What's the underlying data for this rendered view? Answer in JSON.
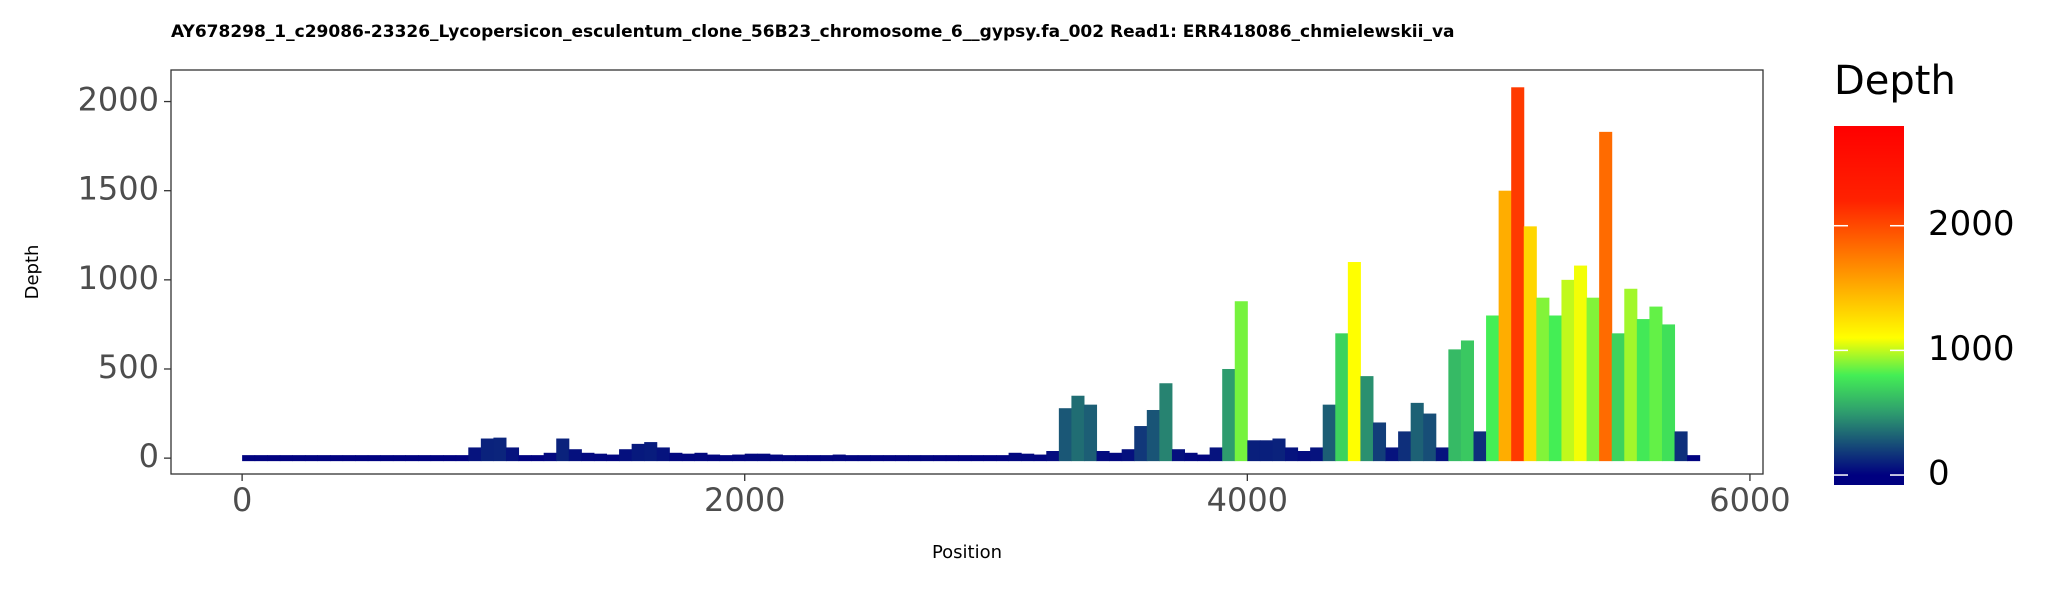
{
  "chart_data": {
    "type": "coverage",
    "title": "AY678298_1_c29086-23326_Lycopersicon_esculentum_clone_56B23_chromosome_6__gypsy.fa_002    Read1: ERR418086_chmielewskii_va",
    "x_label": "Position",
    "y_label": "Depth",
    "x": [
      0,
      50,
      100,
      150,
      200,
      250,
      300,
      350,
      400,
      450,
      500,
      550,
      600,
      650,
      700,
      750,
      800,
      850,
      900,
      950,
      1000,
      1050,
      1100,
      1150,
      1200,
      1250,
      1300,
      1350,
      1400,
      1450,
      1500,
      1550,
      1600,
      1650,
      1700,
      1750,
      1800,
      1850,
      1900,
      1950,
      2000,
      2050,
      2100,
      2150,
      2200,
      2250,
      2300,
      2350,
      2400,
      2450,
      2500,
      2550,
      2600,
      2650,
      2700,
      2750,
      2800,
      2850,
      2900,
      2950,
      3000,
      3050,
      3100,
      3150,
      3200,
      3250,
      3300,
      3350,
      3400,
      3450,
      3500,
      3550,
      3600,
      3650,
      3700,
      3750,
      3800,
      3850,
      3900,
      3950,
      4000,
      4050,
      4100,
      4150,
      4200,
      4250,
      4300,
      4350,
      4400,
      4450,
      4500,
      4550,
      4600,
      4650,
      4700,
      4750,
      4800,
      4850,
      4900,
      4950,
      5000,
      5050,
      5100,
      5150,
      5200,
      5250,
      5300,
      5350,
      5400,
      5450,
      5500,
      5550,
      5600,
      5650,
      5700,
      5750
    ],
    "values": [
      10,
      10,
      8,
      8,
      10,
      10,
      10,
      8,
      8,
      5,
      5,
      5,
      5,
      5,
      5,
      5,
      5,
      10,
      60,
      110,
      115,
      60,
      10,
      10,
      30,
      110,
      50,
      30,
      25,
      20,
      50,
      80,
      90,
      60,
      30,
      25,
      30,
      20,
      15,
      20,
      25,
      25,
      20,
      15,
      10,
      10,
      15,
      20,
      15,
      15,
      10,
      10,
      10,
      15,
      15,
      10,
      8,
      5,
      5,
      5,
      10,
      30,
      25,
      20,
      40,
      280,
      350,
      300,
      40,
      30,
      50,
      180,
      270,
      420,
      50,
      30,
      20,
      60,
      500,
      880,
      100,
      100,
      110,
      60,
      40,
      60,
      300,
      700,
      1100,
      460,
      200,
      60,
      150,
      310,
      250,
      60,
      610,
      660,
      150,
      800,
      1500,
      2080,
      1300,
      900,
      800,
      1000,
      1080,
      900,
      1830,
      700,
      950,
      780,
      850,
      750,
      150,
      10
    ],
    "xlim": [
      -283,
      6052
    ],
    "xticks": [
      0,
      2000,
      4000,
      6000
    ],
    "ylim": [
      -89,
      2177
    ],
    "yticks": [
      0,
      500,
      1000,
      1500,
      2000
    ],
    "legend": {
      "title": "Depth",
      "lim": [
        -80,
        2800
      ],
      "ticks": [
        0,
        1000,
        2000
      ],
      "colorscale": [
        [
          0,
          "#000080"
        ],
        [
          500,
          "#2e9c6e"
        ],
        [
          800,
          "#44ee55"
        ],
        [
          1100,
          "#ffff00"
        ],
        [
          1600,
          "#ff9900"
        ],
        [
          2200,
          "#ff2200"
        ],
        [
          2800,
          "#ff0000"
        ]
      ]
    }
  }
}
